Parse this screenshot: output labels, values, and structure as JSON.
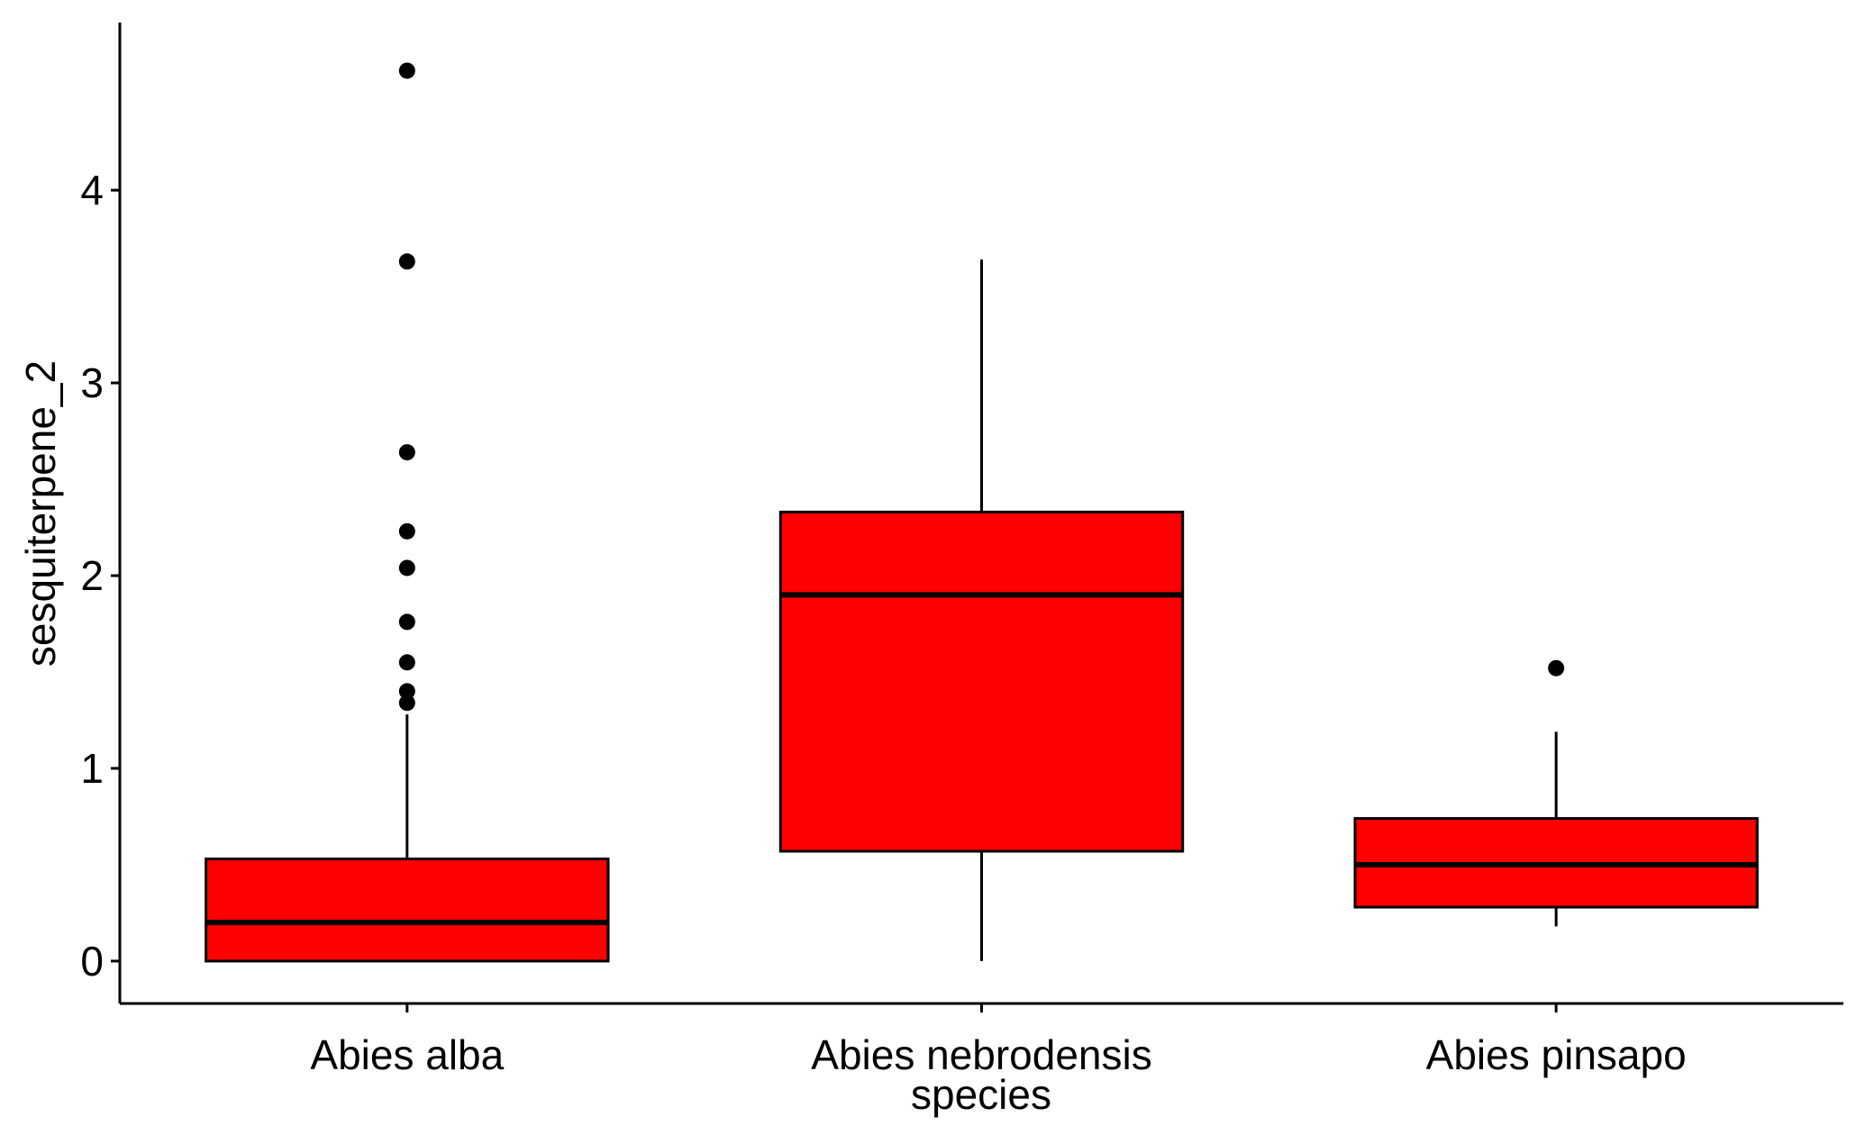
{
  "chart_data": {
    "type": "box",
    "title": "",
    "xlabel": "species",
    "ylabel": "sesquiterpene_2",
    "ylim": [
      -0.22,
      4.87
    ],
    "y_ticks": [
      0,
      1,
      2,
      3,
      4
    ],
    "categories": [
      "Abies alba",
      "Abies nebrodensis",
      "Abies pinsapo"
    ],
    "boxes": [
      {
        "category": "Abies alba",
        "whisker_low": 0.0,
        "q1": 0.0,
        "median": 0.2,
        "q3": 0.53,
        "whisker_high": 1.28,
        "outliers": [
          1.34,
          1.4,
          1.55,
          1.76,
          2.04,
          2.23,
          2.64,
          3.63,
          4.62
        ]
      },
      {
        "category": "Abies nebrodensis",
        "whisker_low": 0.0,
        "q1": 0.57,
        "median": 1.9,
        "q3": 2.33,
        "whisker_high": 3.64,
        "outliers": []
      },
      {
        "category": "Abies pinsapo",
        "whisker_low": 0.18,
        "q1": 0.28,
        "median": 0.5,
        "q3": 0.74,
        "whisker_high": 1.19,
        "outliers": [
          1.52
        ]
      }
    ],
    "box_fill": "#ff0000",
    "box_stroke": "#000000",
    "outlier_color": "#000000",
    "grid": false,
    "legend": "none"
  }
}
